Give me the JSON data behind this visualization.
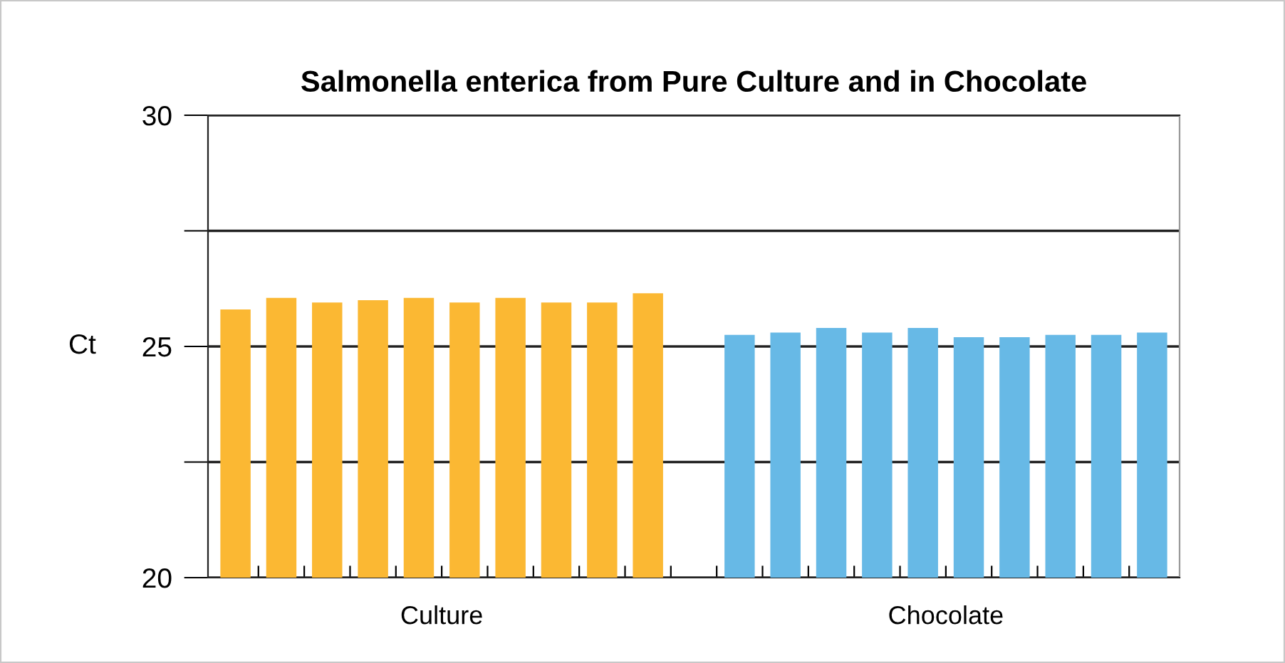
{
  "chart_data": {
    "type": "bar",
    "title": "Salmonella enterica from Pure Culture and in Chocolate",
    "ylabel": "Ct",
    "categories": [
      null,
      null,
      null,
      null,
      null,
      null,
      null,
      null,
      null,
      null,
      null,
      null,
      null,
      null,
      null,
      null,
      null,
      null,
      null,
      null,
      null
    ],
    "series": [
      {
        "name": "Culture",
        "color": "#fbb833",
        "values": [
          25.8,
          26.05,
          25.95,
          26.0,
          26.05,
          25.95,
          26.05,
          25.95,
          25.95,
          26.15,
          null,
          null,
          null,
          null,
          null,
          null,
          null,
          null,
          null,
          null,
          null
        ]
      },
      {
        "name": "Chocolate",
        "color": "#67b9e6",
        "values": [
          null,
          null,
          null,
          null,
          null,
          null,
          null,
          null,
          null,
          null,
          null,
          25.25,
          25.3,
          25.4,
          25.3,
          25.4,
          25.2,
          25.2,
          25.25,
          25.25,
          25.3
        ]
      }
    ],
    "ylim": [
      20,
      30
    ],
    "yticks": [
      20,
      {
        "value": 22.5,
        "label": null
      },
      25,
      {
        "value": 27.5,
        "label": null
      },
      30
    ],
    "grid": "y",
    "legend": false
  }
}
